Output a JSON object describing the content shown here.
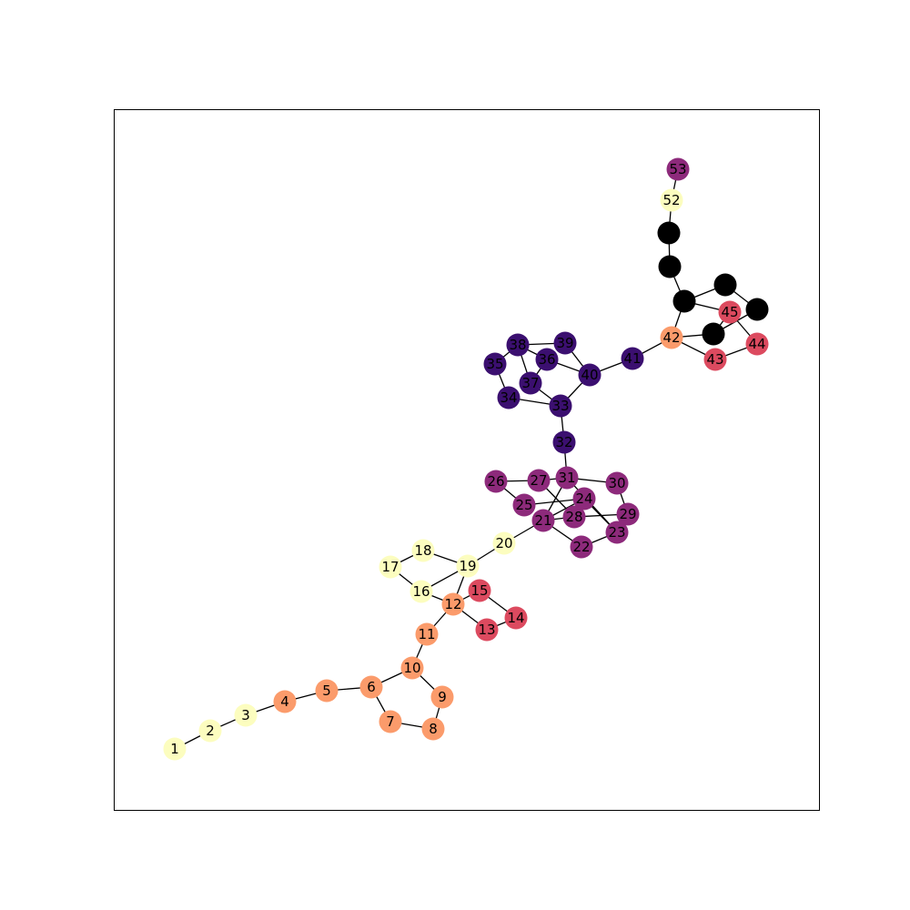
{
  "palette": {
    "pale_yellow": "#fcfdbf",
    "orange": "#fb9b6b",
    "red": "#dc4a5f",
    "magenta": "#8d2a7b",
    "indigo": "#3b0f70",
    "black": "#000000"
  },
  "graph": {
    "nodes": [
      {
        "id": "n1",
        "label": "1",
        "color": "pale_yellow"
      },
      {
        "id": "n2",
        "label": "2",
        "color": "pale_yellow"
      },
      {
        "id": "n3",
        "label": "3",
        "color": "pale_yellow"
      },
      {
        "id": "n4",
        "label": "4",
        "color": "orange"
      },
      {
        "id": "n5",
        "label": "5",
        "color": "orange"
      },
      {
        "id": "n6",
        "label": "6",
        "color": "orange"
      },
      {
        "id": "n7",
        "label": "7",
        "color": "orange"
      },
      {
        "id": "n8",
        "label": "8",
        "color": "orange"
      },
      {
        "id": "n9",
        "label": "9",
        "color": "orange"
      },
      {
        "id": "n10",
        "label": "10",
        "color": "orange"
      },
      {
        "id": "n11",
        "label": "11",
        "color": "orange"
      },
      {
        "id": "n12",
        "label": "12",
        "color": "orange"
      },
      {
        "id": "n13",
        "label": "13",
        "color": "red"
      },
      {
        "id": "n14",
        "label": "14",
        "color": "red"
      },
      {
        "id": "n15",
        "label": "15",
        "color": "red"
      },
      {
        "id": "n16",
        "label": "16",
        "color": "pale_yellow"
      },
      {
        "id": "n17",
        "label": "17",
        "color": "pale_yellow"
      },
      {
        "id": "n18",
        "label": "18",
        "color": "pale_yellow"
      },
      {
        "id": "n19",
        "label": "19",
        "color": "pale_yellow"
      },
      {
        "id": "n20",
        "label": "20",
        "color": "pale_yellow"
      },
      {
        "id": "n21",
        "label": "21",
        "color": "magenta"
      },
      {
        "id": "n22",
        "label": "22",
        "color": "magenta"
      },
      {
        "id": "n23",
        "label": "23",
        "color": "magenta"
      },
      {
        "id": "n24",
        "label": "24",
        "color": "magenta"
      },
      {
        "id": "n25",
        "label": "25",
        "color": "magenta"
      },
      {
        "id": "n26",
        "label": "26",
        "color": "magenta"
      },
      {
        "id": "n27",
        "label": "27",
        "color": "magenta"
      },
      {
        "id": "n28",
        "label": "28",
        "color": "magenta"
      },
      {
        "id": "n29",
        "label": "29",
        "color": "magenta"
      },
      {
        "id": "n30",
        "label": "30",
        "color": "magenta"
      },
      {
        "id": "n31",
        "label": "31",
        "color": "magenta"
      },
      {
        "id": "n32",
        "label": "32",
        "color": "indigo"
      },
      {
        "id": "n33",
        "label": "33",
        "color": "indigo"
      },
      {
        "id": "n34",
        "label": "34",
        "color": "indigo"
      },
      {
        "id": "n35",
        "label": "35",
        "color": "indigo"
      },
      {
        "id": "n36",
        "label": "36",
        "color": "indigo"
      },
      {
        "id": "n37",
        "label": "37",
        "color": "indigo"
      },
      {
        "id": "n38",
        "label": "38",
        "color": "indigo"
      },
      {
        "id": "n39",
        "label": "39",
        "color": "indigo"
      },
      {
        "id": "n40",
        "label": "40",
        "color": "indigo"
      },
      {
        "id": "n41",
        "label": "41",
        "color": "indigo"
      },
      {
        "id": "n42",
        "label": "42",
        "color": "orange"
      },
      {
        "id": "n43",
        "label": "43",
        "color": "red"
      },
      {
        "id": "n44",
        "label": "44",
        "color": "red"
      },
      {
        "id": "n45",
        "label": "45",
        "color": "red"
      },
      {
        "id": "n46",
        "label": "",
        "color": "black"
      },
      {
        "id": "n47",
        "label": "",
        "color": "black"
      },
      {
        "id": "n48",
        "label": "",
        "color": "black"
      },
      {
        "id": "n49",
        "label": "",
        "color": "black"
      },
      {
        "id": "n50",
        "label": "",
        "color": "black"
      },
      {
        "id": "n51",
        "label": "",
        "color": "black"
      },
      {
        "id": "n52",
        "label": "52",
        "color": "pale_yellow"
      },
      {
        "id": "n53",
        "label": "53",
        "color": "magenta"
      }
    ],
    "edges": [
      [
        "n1",
        "n2"
      ],
      [
        "n2",
        "n3"
      ],
      [
        "n3",
        "n4"
      ],
      [
        "n4",
        "n5"
      ],
      [
        "n5",
        "n6"
      ],
      [
        "n6",
        "n7"
      ],
      [
        "n7",
        "n8"
      ],
      [
        "n8",
        "n9"
      ],
      [
        "n9",
        "n10"
      ],
      [
        "n6",
        "n10"
      ],
      [
        "n10",
        "n11"
      ],
      [
        "n11",
        "n12"
      ],
      [
        "n12",
        "n13"
      ],
      [
        "n13",
        "n14"
      ],
      [
        "n14",
        "n15"
      ],
      [
        "n12",
        "n15"
      ],
      [
        "n12",
        "n16"
      ],
      [
        "n12",
        "n19"
      ],
      [
        "n16",
        "n17"
      ],
      [
        "n17",
        "n18"
      ],
      [
        "n18",
        "n19"
      ],
      [
        "n16",
        "n19"
      ],
      [
        "n19",
        "n20"
      ],
      [
        "n20",
        "n21"
      ],
      [
        "n21",
        "n22"
      ],
      [
        "n22",
        "n23"
      ],
      [
        "n23",
        "n24"
      ],
      [
        "n21",
        "n24"
      ],
      [
        "n21",
        "n28"
      ],
      [
        "n24",
        "n25"
      ],
      [
        "n25",
        "n26"
      ],
      [
        "n26",
        "n27"
      ],
      [
        "n27",
        "n31"
      ],
      [
        "n27",
        "n28"
      ],
      [
        "n28",
        "n29"
      ],
      [
        "n29",
        "n30"
      ],
      [
        "n30",
        "n31"
      ],
      [
        "n31",
        "n23"
      ],
      [
        "n31",
        "n21"
      ],
      [
        "n31",
        "n32"
      ],
      [
        "n32",
        "n33"
      ],
      [
        "n33",
        "n34"
      ],
      [
        "n34",
        "n35"
      ],
      [
        "n35",
        "n38"
      ],
      [
        "n38",
        "n36"
      ],
      [
        "n36",
        "n37"
      ],
      [
        "n37",
        "n33"
      ],
      [
        "n38",
        "n39"
      ],
      [
        "n39",
        "n40"
      ],
      [
        "n36",
        "n40"
      ],
      [
        "n33",
        "n40"
      ],
      [
        "n37",
        "n38"
      ],
      [
        "n40",
        "n41"
      ],
      [
        "n41",
        "n42"
      ],
      [
        "n42",
        "n43"
      ],
      [
        "n43",
        "n44"
      ],
      [
        "n44",
        "n45"
      ],
      [
        "n42",
        "n48"
      ],
      [
        "n42",
        "n51"
      ],
      [
        "n48",
        "n45"
      ],
      [
        "n48",
        "n49"
      ],
      [
        "n49",
        "n50"
      ],
      [
        "n50",
        "n51"
      ],
      [
        "n51",
        "n45"
      ],
      [
        "n48",
        "n47"
      ],
      [
        "n47",
        "n46"
      ],
      [
        "n46",
        "n52"
      ],
      [
        "n52",
        "n53"
      ]
    ]
  }
}
